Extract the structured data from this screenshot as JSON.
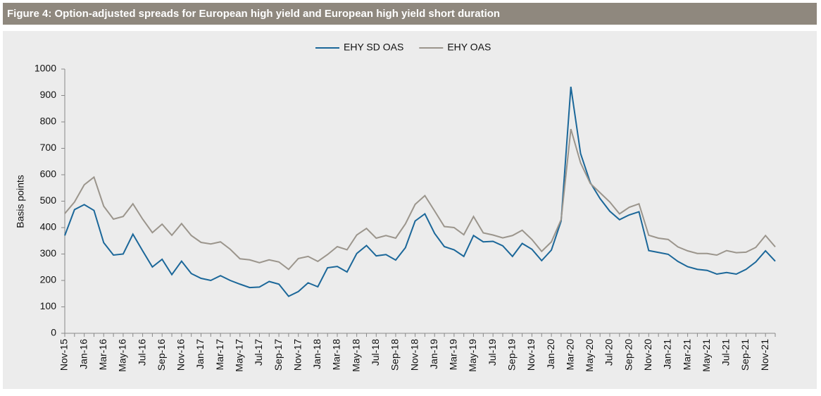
{
  "chart_data": {
    "type": "line",
    "title": "Figure 4: Option-adjusted spreads for European high yield and European high yield short duration",
    "y_label": "Basis points",
    "categories": [
      "Nov-15",
      null,
      "Jan-16",
      null,
      "Mar-16",
      null,
      "May-16",
      null,
      "Jul-16",
      null,
      "Sep-16",
      null,
      "Nov-16",
      null,
      "Jan-17",
      null,
      "Mar-17",
      null,
      "May-17",
      null,
      "Jul-17",
      null,
      "Sep-17",
      null,
      "Nov-17",
      null,
      "Jan-18",
      null,
      "Mar-18",
      null,
      "May-18",
      null,
      "Jul-18",
      null,
      "Sep-18",
      null,
      "Nov-18",
      null,
      "Jan-19",
      null,
      "Mar-19",
      null,
      "May-19",
      null,
      "Jul-19",
      null,
      "Sep-19",
      null,
      "Nov-19",
      null,
      "Jan-20",
      null,
      "Mar-20",
      null,
      "May-20",
      null,
      "Jul-20",
      null,
      "Sep-20",
      null,
      "Nov-20",
      null,
      "Jan-21",
      null,
      "Mar-21",
      null,
      "May-21",
      null,
      "Jul-21",
      null,
      "Sep-21",
      null,
      "Nov-21",
      null
    ],
    "series": [
      {
        "name": "EHY SD OAS",
        "color": "#1b6799",
        "values": [
          370,
          468,
          487,
          465,
          343,
          296,
          300,
          375,
          312,
          251,
          280,
          222,
          273,
          226,
          208,
          200,
          218,
          200,
          186,
          173,
          175,
          196,
          186,
          140,
          158,
          191,
          176,
          248,
          253,
          232,
          302,
          332,
          293,
          298,
          277,
          324,
          425,
          452,
          378,
          328,
          316,
          291,
          370,
          346,
          348,
          331,
          291,
          340,
          318,
          275,
          315,
          425,
          933,
          680,
          570,
          510,
          462,
          430,
          448,
          460,
          313,
          306,
          299,
          272,
          252,
          242,
          238,
          224,
          230,
          224,
          242,
          270,
          312,
          273
        ]
      },
      {
        "name": "EHY OAS",
        "color": "#9b958c",
        "values": [
          453,
          497,
          562,
          591,
          481,
          432,
          442,
          490,
          432,
          381,
          413,
          371,
          415,
          370,
          344,
          338,
          346,
          318,
          282,
          278,
          267,
          278,
          270,
          242,
          283,
          291,
          272,
          298,
          328,
          316,
          372,
          397,
          360,
          370,
          360,
          414,
          488,
          521,
          463,
          404,
          400,
          373,
          442,
          380,
          372,
          361,
          370,
          390,
          355,
          310,
          346,
          430,
          773,
          645,
          567,
          532,
          497,
          452,
          477,
          490,
          371,
          360,
          355,
          327,
          312,
          302,
          302,
          296,
          313,
          305,
          307,
          325,
          370,
          327
        ]
      }
    ],
    "ylim": [
      0,
      1000
    ],
    "yticks": [
      0,
      100,
      200,
      300,
      400,
      500,
      600,
      700,
      800,
      900,
      1000
    ],
    "legend": "top",
    "grid": false
  }
}
